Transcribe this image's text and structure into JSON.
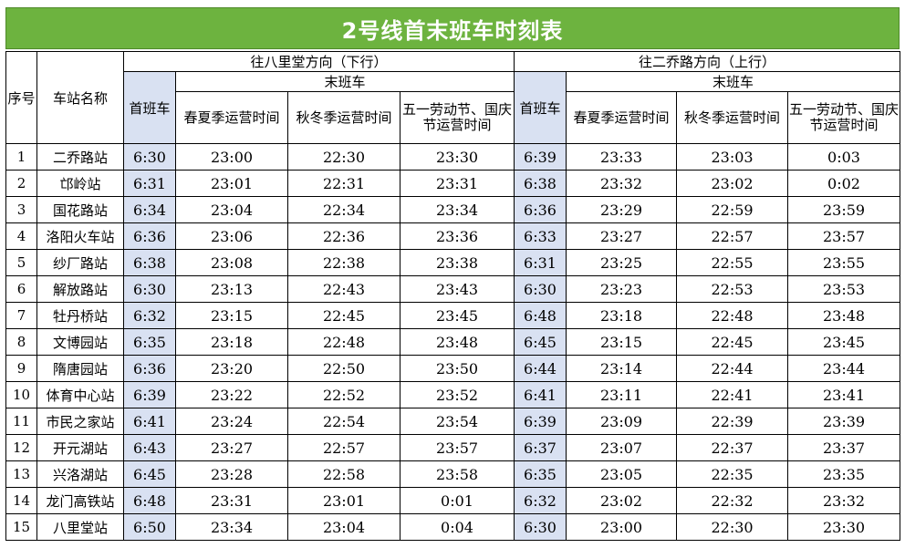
{
  "title": "2号线首末班车时刻表",
  "headers": {
    "seq": "序号",
    "station": "车站名称",
    "dir_down": "往八里堂方向（下行）",
    "dir_up": "往二乔路方向（上行）",
    "first_train": "首班车",
    "last_train": "末班车",
    "spring_summer": "春夏季运营时间",
    "autumn_winter": "秋冬季运营时间",
    "holiday_down": "五一劳动节、国庆节运营时间",
    "holiday_up": "五一劳动节、国庆节运营时间"
  },
  "rows": [
    {
      "no": "1",
      "station": "二乔路站",
      "d_first": "6:30",
      "d_ss": "23:00",
      "d_aw": "22:30",
      "d_hol": "23:30",
      "u_first": "6:39",
      "u_ss": "23:33",
      "u_aw": "23:03",
      "u_hol": "0:03"
    },
    {
      "no": "2",
      "station": "邙岭站",
      "d_first": "6:31",
      "d_ss": "23:01",
      "d_aw": "22:31",
      "d_hol": "23:31",
      "u_first": "6:38",
      "u_ss": "23:32",
      "u_aw": "23:02",
      "u_hol": "0:02"
    },
    {
      "no": "3",
      "station": "国花路站",
      "d_first": "6:34",
      "d_ss": "23:04",
      "d_aw": "22:34",
      "d_hol": "23:34",
      "u_first": "6:36",
      "u_ss": "23:29",
      "u_aw": "22:59",
      "u_hol": "23:59"
    },
    {
      "no": "4",
      "station": "洛阳火车站",
      "d_first": "6:36",
      "d_ss": "23:06",
      "d_aw": "22:36",
      "d_hol": "23:36",
      "u_first": "6:33",
      "u_ss": "23:27",
      "u_aw": "22:57",
      "u_hol": "23:57"
    },
    {
      "no": "5",
      "station": "纱厂路站",
      "d_first": "6:38",
      "d_ss": "23:08",
      "d_aw": "22:38",
      "d_hol": "23:38",
      "u_first": "6:31",
      "u_ss": "23:25",
      "u_aw": "22:55",
      "u_hol": "23:55"
    },
    {
      "no": "6",
      "station": "解放路站",
      "d_first": "6:30",
      "d_ss": "23:13",
      "d_aw": "22:43",
      "d_hol": "23:43",
      "u_first": "6:30",
      "u_ss": "23:23",
      "u_aw": "22:53",
      "u_hol": "23:53"
    },
    {
      "no": "7",
      "station": "牡丹桥站",
      "d_first": "6:32",
      "d_ss": "23:15",
      "d_aw": "22:45",
      "d_hol": "23:45",
      "u_first": "6:48",
      "u_ss": "23:18",
      "u_aw": "22:48",
      "u_hol": "23:48"
    },
    {
      "no": "8",
      "station": "文博园站",
      "d_first": "6:35",
      "d_ss": "23:18",
      "d_aw": "22:48",
      "d_hol": "23:48",
      "u_first": "6:45",
      "u_ss": "23:15",
      "u_aw": "22:45",
      "u_hol": "23:45"
    },
    {
      "no": "9",
      "station": "隋唐园站",
      "d_first": "6:36",
      "d_ss": "23:20",
      "d_aw": "22:50",
      "d_hol": "23:50",
      "u_first": "6:44",
      "u_ss": "23:14",
      "u_aw": "22:44",
      "u_hol": "23:44"
    },
    {
      "no": "10",
      "station": "体育中心站",
      "d_first": "6:39",
      "d_ss": "23:22",
      "d_aw": "22:52",
      "d_hol": "23:52",
      "u_first": "6:41",
      "u_ss": "23:11",
      "u_aw": "22:41",
      "u_hol": "23:41"
    },
    {
      "no": "11",
      "station": "市民之家站",
      "d_first": "6:41",
      "d_ss": "23:24",
      "d_aw": "22:54",
      "d_hol": "23:54",
      "u_first": "6:39",
      "u_ss": "23:09",
      "u_aw": "22:39",
      "u_hol": "23:39"
    },
    {
      "no": "12",
      "station": "开元湖站",
      "d_first": "6:43",
      "d_ss": "23:27",
      "d_aw": "22:57",
      "d_hol": "23:57",
      "u_first": "6:37",
      "u_ss": "23:07",
      "u_aw": "22:37",
      "u_hol": "23:37"
    },
    {
      "no": "13",
      "station": "兴洛湖站",
      "d_first": "6:45",
      "d_ss": "23:28",
      "d_aw": "22:58",
      "d_hol": "23:58",
      "u_first": "6:35",
      "u_ss": "23:05",
      "u_aw": "22:35",
      "u_hol": "23:35"
    },
    {
      "no": "14",
      "station": "龙门高铁站",
      "d_first": "6:48",
      "d_ss": "23:31",
      "d_aw": "23:01",
      "d_hol": "0:01",
      "u_first": "6:32",
      "u_ss": "23:02",
      "u_aw": "22:32",
      "u_hol": "23:32"
    },
    {
      "no": "15",
      "station": "八里堂站",
      "d_first": "6:50",
      "d_ss": "23:34",
      "d_aw": "23:04",
      "d_hol": "0:04",
      "u_first": "6:30",
      "u_ss": "23:00",
      "u_aw": "22:30",
      "u_hol": "23:30"
    }
  ],
  "colors": {
    "title_bg": "#6db33f",
    "first_train_bg": "#d9e1f2"
  }
}
